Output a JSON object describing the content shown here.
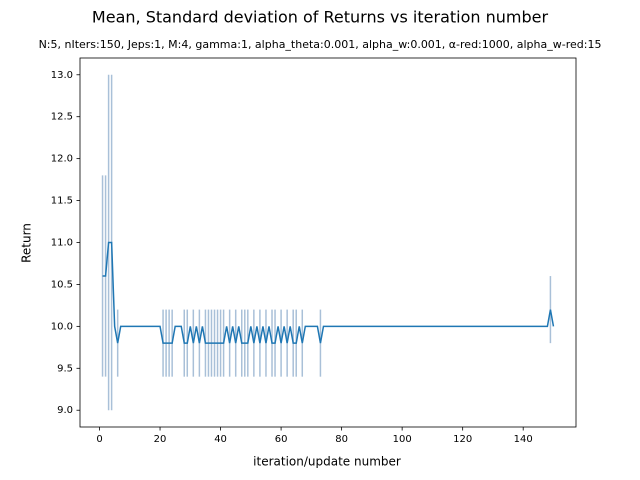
{
  "chart_data": {
    "type": "errorbar-line",
    "title": "Mean, Standard deviation of Returns vs iteration number",
    "subtitle": "N:5, nIters:150, Jeps:1, M:4, gamma:1, alpha_theta:0.001, alpha_w:0.001, α-red:1000, alpha_w-red:15",
    "x_label": "iteration/update number",
    "y_label": "Return",
    "color": "#1f77b4",
    "error_color": "#a9c0d8",
    "x": [
      1,
      2,
      3,
      4,
      5,
      6,
      7,
      8,
      9,
      10,
      11,
      12,
      13,
      14,
      15,
      16,
      17,
      18,
      19,
      20,
      21,
      22,
      23,
      24,
      25,
      26,
      27,
      28,
      29,
      30,
      31,
      32,
      33,
      34,
      35,
      36,
      37,
      38,
      39,
      40,
      41,
      42,
      43,
      44,
      45,
      46,
      47,
      48,
      49,
      50,
      51,
      52,
      53,
      54,
      55,
      56,
      57,
      58,
      59,
      60,
      61,
      62,
      63,
      64,
      65,
      66,
      67,
      68,
      69,
      70,
      71,
      72,
      73,
      74,
      75,
      76,
      77,
      78,
      79,
      80,
      81,
      82,
      83,
      84,
      85,
      86,
      87,
      88,
      89,
      90,
      91,
      92,
      93,
      94,
      95,
      96,
      97,
      98,
      99,
      100,
      101,
      102,
      103,
      104,
      105,
      106,
      107,
      108,
      109,
      110,
      111,
      112,
      113,
      114,
      115,
      116,
      117,
      118,
      119,
      120,
      121,
      122,
      123,
      124,
      125,
      126,
      127,
      128,
      129,
      130,
      131,
      132,
      133,
      134,
      135,
      136,
      137,
      138,
      139,
      140,
      141,
      142,
      143,
      144,
      145,
      146,
      147,
      148,
      149,
      150
    ],
    "values": [
      10.6,
      10.6,
      11,
      11,
      10,
      9.8,
      10,
      10,
      10,
      10,
      10,
      10,
      10,
      10,
      10,
      10,
      10,
      10,
      10,
      10,
      9.8,
      9.8,
      9.8,
      9.8,
      10,
      10,
      10,
      9.8,
      9.8,
      10,
      9.8,
      10,
      9.8,
      10,
      9.8,
      9.8,
      9.8,
      9.8,
      9.8,
      9.8,
      9.8,
      10,
      9.8,
      10,
      9.8,
      10,
      9.8,
      9.8,
      9.8,
      10,
      9.8,
      10,
      9.8,
      10,
      9.8,
      10,
      9.8,
      9.8,
      10,
      9.8,
      10,
      9.8,
      10,
      9.8,
      9.8,
      10,
      9.8,
      10,
      10,
      10,
      10,
      10,
      9.8,
      10,
      10,
      10,
      10,
      10,
      10,
      10,
      10,
      10,
      10,
      10,
      10,
      10,
      10,
      10,
      10,
      10,
      10,
      10,
      10,
      10,
      10,
      10,
      10,
      10,
      10,
      10,
      10,
      10,
      10,
      10,
      10,
      10,
      10,
      10,
      10,
      10,
      10,
      10,
      10,
      10,
      10,
      10,
      10,
      10,
      10,
      10,
      10,
      10,
      10,
      10,
      10,
      10,
      10,
      10,
      10,
      10,
      10,
      10,
      10,
      10,
      10,
      10,
      10,
      10,
      10,
      10,
      10,
      10,
      10,
      10,
      10,
      10,
      10,
      10,
      10.2,
      10
    ],
    "errors": [
      1.2,
      1.2,
      2,
      2,
      0,
      0.4,
      0,
      0,
      0,
      0,
      0,
      0,
      0,
      0,
      0,
      0,
      0,
      0,
      0,
      0,
      0.4,
      0.4,
      0.4,
      0.4,
      0,
      0,
      0,
      0.4,
      0.4,
      0,
      0.4,
      0,
      0.4,
      0,
      0.4,
      0.4,
      0.4,
      0.4,
      0.4,
      0.4,
      0.4,
      0,
      0.4,
      0,
      0.4,
      0,
      0.4,
      0.4,
      0.4,
      0,
      0.4,
      0,
      0.4,
      0,
      0.4,
      0,
      0.4,
      0.4,
      0,
      0.4,
      0,
      0.4,
      0,
      0.4,
      0.4,
      0,
      0.4,
      0,
      0,
      0,
      0,
      0,
      0.4,
      0,
      0,
      0,
      0,
      0,
      0,
      0,
      0,
      0,
      0,
      0,
      0,
      0,
      0,
      0,
      0,
      0,
      0,
      0,
      0,
      0,
      0,
      0,
      0,
      0,
      0,
      0,
      0,
      0,
      0,
      0,
      0,
      0,
      0,
      0,
      0,
      0,
      0,
      0,
      0,
      0,
      0,
      0,
      0,
      0,
      0,
      0,
      0,
      0,
      0,
      0,
      0,
      0,
      0,
      0,
      0,
      0,
      0,
      0,
      0,
      0,
      0,
      0,
      0,
      0,
      0,
      0,
      0,
      0,
      0,
      0,
      0,
      0,
      0,
      0,
      0.4,
      0
    ],
    "xlim": [
      -6.45,
      157.45
    ],
    "ylim": [
      8.8,
      13.2
    ],
    "xticks": [
      0,
      20,
      40,
      60,
      80,
      100,
      120,
      140
    ],
    "yticks": [
      {
        "value": 9,
        "label": "9.0"
      },
      9.5,
      {
        "value": 10,
        "label": "10.0"
      },
      10.5,
      {
        "value": 11,
        "label": "11.0"
      },
      11.5,
      {
        "value": 12,
        "label": "12.0"
      },
      12.5,
      {
        "value": 13,
        "label": "13.0"
      }
    ]
  }
}
